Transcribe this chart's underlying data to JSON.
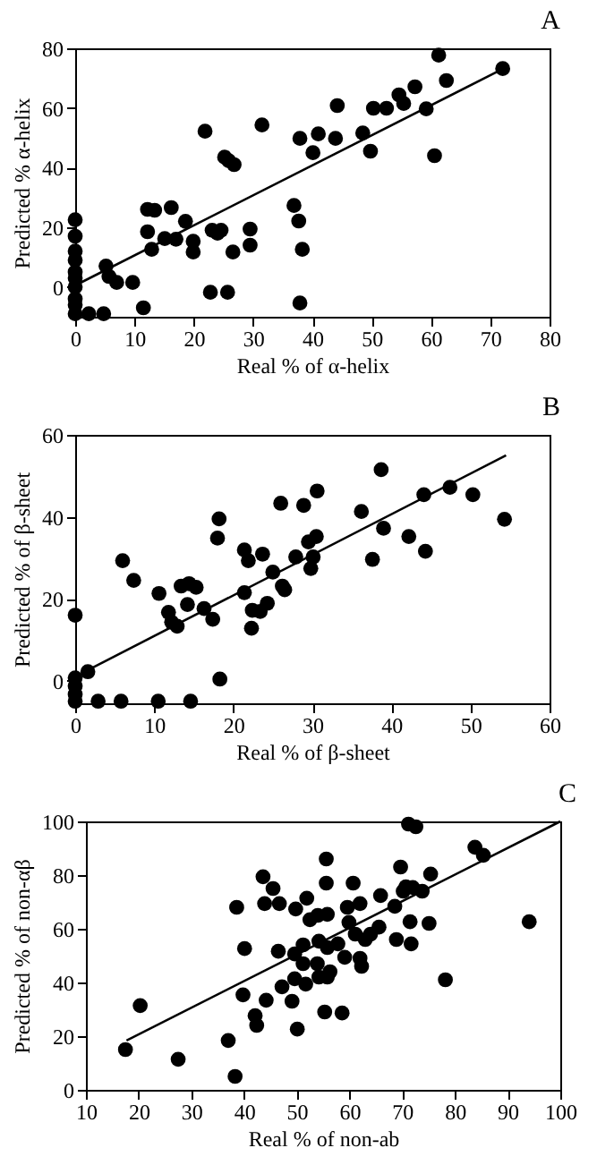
{
  "chart_data": [
    {
      "type": "scatter",
      "annotations": [
        "A"
      ],
      "xlabel": "Real % of α-helix",
      "ylabel": "Predicted % α-helix",
      "xlim": [
        0,
        80
      ],
      "ylim": [
        -10,
        80
      ],
      "xticks": [
        0,
        10,
        20,
        30,
        40,
        50,
        60,
        70,
        80
      ],
      "yticks": [
        0,
        20,
        40,
        60,
        80
      ],
      "grid": false,
      "series": [
        {
          "color": "#000000",
          "marker": "circle",
          "x": [
            0,
            0,
            0,
            0,
            0,
            0,
            0,
            0,
            0,
            0,
            2.3,
            4.8,
            5.2,
            5.7,
            7,
            9.7,
            11.5,
            12.2,
            13.4,
            12.2,
            12.9,
            15.1,
            16.2,
            17,
            18.6,
            19.9,
            19.9,
            21.9,
            22.8,
            23.1,
            24,
            24.6,
            25.2,
            25.9,
            26.8,
            25.7,
            26.6,
            29.5,
            29.5,
            31.5,
            36.9,
            37.7,
            37.9,
            38.3,
            37.9,
            40.1,
            41,
            43.9,
            44.2,
            48.5,
            49.8,
            50.3,
            52.5,
            54.6,
            55.4,
            57.3,
            59.2,
            60.6,
            61.3,
            62.6,
            72.1
          ],
          "values": [
            22.5,
            17,
            12,
            9,
            5,
            3,
            0,
            -4,
            -6,
            -9,
            -9,
            -9,
            7,
            3.5,
            1.5,
            1.5,
            -7,
            26,
            25.7,
            18.5,
            12.6,
            16.2,
            26.6,
            16,
            22,
            15.3,
            11.7,
            52.2,
            -1.8,
            19,
            18,
            19,
            43.5,
            42.3,
            41,
            -1.8,
            11.7,
            19.4,
            14,
            54.3,
            27.3,
            22.1,
            -5.4,
            12.6,
            49.8,
            45,
            51.3,
            49.8,
            60.8,
            51.6,
            45.5,
            59.9,
            59.9,
            64.4,
            61.5,
            67.1,
            59.7,
            44,
            77.7,
            69.2,
            73.2
          ]
        },
        {
          "type": "line",
          "marker": "none",
          "color": "#000000",
          "x": [
            0,
            72
          ],
          "values": [
            0.5,
            73
          ]
        }
      ]
    },
    {
      "type": "scatter",
      "annotations": [
        "B"
      ],
      "xlabel": "Real % of β-sheet",
      "ylabel": "Predicted % of β-sheet",
      "xlim": [
        0,
        60
      ],
      "ylim": [
        -5.5,
        60
      ],
      "xticks": [
        0,
        10,
        20,
        30,
        40,
        50,
        60
      ],
      "yticks": [
        0,
        20,
        40,
        60
      ],
      "grid": false,
      "series": [
        {
          "color": "#000000",
          "marker": "circle",
          "x": [
            0,
            0,
            0,
            0,
            0,
            1.6,
            2.9,
            5.8,
            10.5,
            14.6,
            6,
            7.4,
            10.6,
            13.4,
            11.8,
            12.2,
            12.9,
            14.2,
            14.4,
            15.3,
            16.3,
            17.4,
            18.2,
            18,
            18.3,
            21.4,
            21.9,
            21.4,
            23.7,
            22.4,
            22.3,
            23.4,
            24.3,
            25,
            26,
            26.2,
            27.9,
            26.5,
            28.9,
            29.5,
            30.1,
            29.8,
            30.5,
            30.6,
            36.2,
            37.6,
            38.7,
            39,
            42.2,
            44.3,
            44.1,
            47.4,
            50.3,
            54.3
          ],
          "values": [
            16,
            0.7,
            -1.3,
            -3.3,
            -5,
            2.2,
            -5,
            -5,
            -5,
            -5,
            29.3,
            24.5,
            21.3,
            23.1,
            16.7,
            14.3,
            13.3,
            18.6,
            23.7,
            22.8,
            17.6,
            15,
            39.5,
            34.8,
            0.4,
            31.9,
            29.3,
            21.5,
            30.9,
            17.2,
            12.8,
            16.9,
            18.9,
            26.5,
            43.3,
            23.1,
            30.2,
            22.2,
            42.8,
            33.9,
            30.2,
            27.4,
            35.2,
            46.3,
            41.3,
            29.6,
            51.5,
            37.2,
            35.2,
            31.6,
            45.4,
            47.2,
            45.4,
            39.4
          ]
        },
        {
          "type": "line",
          "marker": "none",
          "color": "#000000",
          "x": [
            1,
            54.5
          ],
          "values": [
            2,
            55
          ]
        }
      ]
    },
    {
      "type": "scatter",
      "annotations": [
        "C"
      ],
      "xlabel": "Real % of non-ab",
      "ylabel": "Predicted % of non-αβ",
      "xlim": [
        10,
        100
      ],
      "ylim": [
        0,
        100
      ],
      "xticks": [
        10,
        20,
        30,
        40,
        50,
        60,
        70,
        80,
        90,
        100
      ],
      "yticks": [
        0,
        20,
        40,
        60,
        80,
        100
      ],
      "grid": false,
      "series": [
        {
          "color": "#000000",
          "marker": "circle",
          "x": [
            17.5,
            20.3,
            27.5,
            37,
            38.3,
            38.6,
            40.1,
            39.8,
            42.1,
            42.4,
            43.6,
            43.9,
            44.2,
            45.5,
            46.7,
            46.5,
            47.2,
            49.1,
            49.8,
            49.6,
            49.6,
            50.1,
            51.2,
            51.2,
            51.7,
            51.9,
            52.5,
            54,
            54.2,
            53.9,
            54.2,
            55.3,
            55.6,
            55.6,
            55.8,
            55.8,
            56.3,
            55.8,
            57.8,
            58.6,
            59.1,
            59.6,
            59.9,
            60.7,
            61.1,
            62,
            62.3,
            62,
            63,
            64,
            65.6,
            65.9,
            68.6,
            68.9,
            69.7,
            70.2,
            70.7,
            71.2,
            72.6,
            71.5,
            71.7,
            72,
            73.8,
            75.1,
            75.4,
            78.2,
            83.8,
            85.4,
            94.1
          ],
          "values": [
            15,
            31.4,
            11.4,
            18.4,
            5,
            68,
            52.6,
            35.4,
            27.6,
            24,
            79.4,
            69.4,
            33.4,
            75,
            69.4,
            51.6,
            38.4,
            33,
            67.4,
            50.6,
            41.4,
            22.6,
            54,
            47,
            39.4,
            71.4,
            63.4,
            65,
            55.4,
            47,
            42,
            29,
            86,
            77,
            65.4,
            53,
            44,
            42,
            54.4,
            28.6,
            49.4,
            68,
            62.4,
            77,
            58,
            49,
            46,
            69.4,
            56,
            58,
            60.6,
            72.4,
            68.4,
            56,
            83,
            74,
            75.6,
            99,
            98,
            62.6,
            54.4,
            75.4,
            74,
            62,
            80.4,
            41,
            90.4,
            87.4,
            62.6
          ]
        },
        {
          "type": "line",
          "marker": "none",
          "color": "#000000",
          "x": [
            17.7,
            100
          ],
          "values": [
            18.4,
            100
          ]
        }
      ]
    }
  ]
}
